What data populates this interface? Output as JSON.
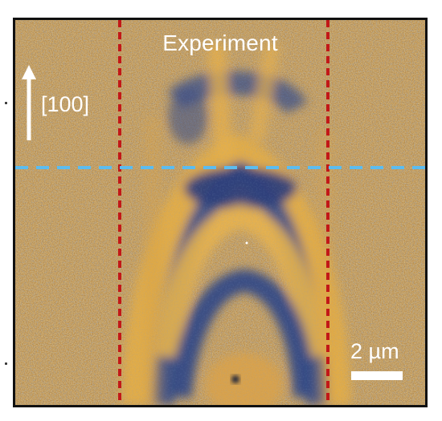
{
  "figure": {
    "title": "Experiment",
    "direction_label": "[100]",
    "scale_bar_label": "2 µm"
  },
  "colors": {
    "blue_feature": "#3a4f84",
    "orange_feature": "#e0a63a",
    "background_noise": "#8b7b55",
    "vertical_markers": "#c21818",
    "horizontal_marker": "#5bbcf0",
    "annotations": "#ffffff",
    "frame": "#111111"
  },
  "icons": {
    "direction_arrow": "arrow-up-icon"
  }
}
